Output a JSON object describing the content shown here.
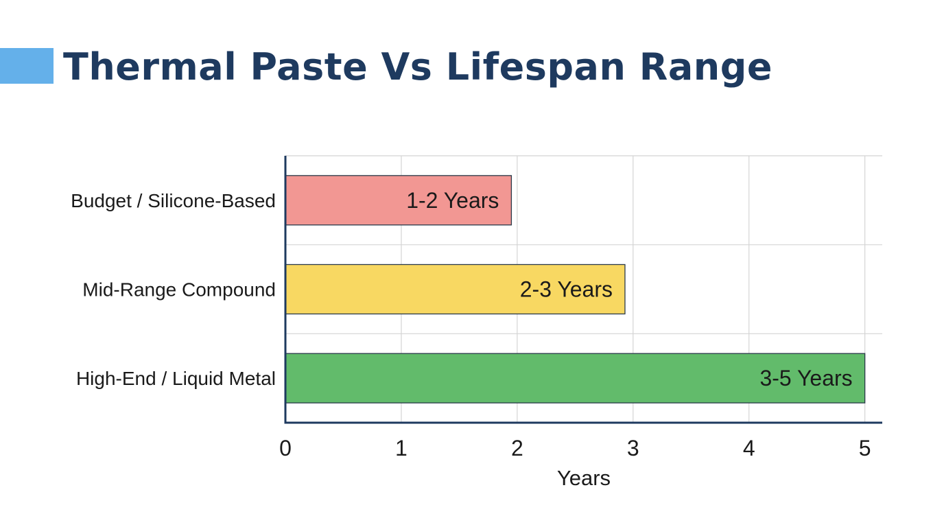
{
  "header": {
    "title": "Thermal Paste Vs Lifespan Range"
  },
  "colors": {
    "title": "#1e3a5f",
    "accent": "#64b0ea",
    "axis": "#1e3a5f",
    "grid": "#d4d4d4",
    "bar_outline": "#2a3a4a"
  },
  "chart_data": {
    "type": "bar",
    "orientation": "horizontal",
    "categories": [
      "Budget / Silicone-Based",
      "Mid-Range Compound",
      "High-End / Liquid Metal"
    ],
    "values": [
      1.95,
      2.93,
      5.0
    ],
    "data_labels": [
      "1-2 Years",
      "2-3 Years",
      "3-5 Years"
    ],
    "bar_colors": [
      "#f29793",
      "#f8d862",
      "#62bb6b"
    ],
    "xlabel": "Years",
    "ylabel": "",
    "xlim": [
      0,
      5.15
    ],
    "xticks": [
      0,
      1,
      2,
      3,
      4,
      5
    ],
    "grid": true,
    "legend": "none"
  }
}
